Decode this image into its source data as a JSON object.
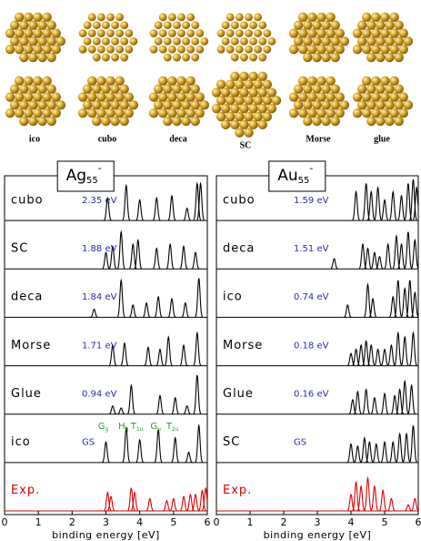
{
  "cluster_labels": [
    "ico",
    "cubo",
    "deca",
    "SC",
    "Morse",
    "glue"
  ],
  "chart_data": [
    {
      "type": "line",
      "title": {
        "base": "Ag",
        "sub": "55",
        "sup": "-"
      },
      "xlabel": "binding energy [eV]",
      "xlim": [
        0,
        6
      ],
      "xticks": [
        0,
        1,
        2,
        3,
        4,
        5,
        6
      ],
      "series": [
        {
          "name": "cubo",
          "label": "2.35 eV",
          "color": "#000000",
          "x": [
            3.05,
            3.6,
            4.0,
            4.5,
            4.95,
            5.4,
            5.7,
            5.8
          ],
          "values": [
            0.55,
            0.85,
            0.5,
            0.55,
            0.6,
            0.3,
            0.9,
            0.9
          ]
        },
        {
          "name": "SC",
          "label": "1.88 eV",
          "color": "#000000",
          "x": [
            3.0,
            3.2,
            3.45,
            3.8,
            3.95,
            4.5,
            4.9,
            5.3,
            5.65
          ],
          "values": [
            0.4,
            0.55,
            0.9,
            0.6,
            0.7,
            0.5,
            0.6,
            0.55,
            0.4
          ]
        },
        {
          "name": "deca",
          "label": "1.84 eV",
          "color": "#000000",
          "x": [
            2.65,
            3.45,
            3.8,
            4.2,
            4.55,
            4.95,
            5.35,
            5.75
          ],
          "values": [
            0.2,
            0.9,
            0.3,
            0.35,
            0.5,
            0.45,
            0.35,
            0.95
          ]
        },
        {
          "name": "Morse",
          "label": "1.71 eV",
          "color": "#000000",
          "x": [
            3.2,
            3.55,
            4.25,
            4.6,
            4.85,
            5.3,
            5.7
          ],
          "values": [
            0.5,
            0.55,
            0.45,
            0.4,
            0.7,
            0.5,
            0.8
          ]
        },
        {
          "name": "Glue",
          "label": "0.94 eV",
          "color": "#000000",
          "x": [
            3.2,
            3.45,
            3.75,
            4.6,
            5.05,
            5.4,
            5.7
          ],
          "values": [
            0.2,
            0.15,
            0.7,
            0.45,
            0.4,
            0.2,
            0.95
          ]
        },
        {
          "name": "ico",
          "label": "GS",
          "color": "#000000",
          "x": [
            3.0,
            3.6,
            4.0,
            4.55,
            5.05,
            5.45,
            5.75
          ],
          "values": [
            0.5,
            0.85,
            0.55,
            0.8,
            0.6,
            0.25,
            0.9
          ],
          "peak_labels": [
            {
              "base": "G",
              "sub": "g"
            },
            {
              "base": "H",
              "sub": "g"
            },
            {
              "base": "T",
              "sub": "1u"
            },
            {
              "base": "G",
              "sub": "u"
            },
            {
              "base": "T",
              "sub": "2u"
            }
          ]
        },
        {
          "name": "Exp.",
          "color": "#e00000",
          "x": [
            3.05,
            3.15,
            3.75,
            3.85,
            4.3,
            4.8,
            5.0,
            5.3,
            5.5,
            5.65,
            5.85,
            5.95
          ],
          "values": [
            0.45,
            0.35,
            0.55,
            0.45,
            0.3,
            0.25,
            0.3,
            0.35,
            0.4,
            0.4,
            0.5,
            0.55
          ]
        }
      ]
    },
    {
      "type": "line",
      "title": {
        "base": "Au",
        "sub": "55",
        "sup": "-"
      },
      "xlabel": "binding energy [eV]",
      "xlim": [
        0,
        6
      ],
      "xticks": [
        0,
        1,
        2,
        3,
        4,
        5,
        6
      ],
      "series": [
        {
          "name": "cubo",
          "label": "1.59 eV",
          "color": "#000000",
          "x": [
            4.15,
            4.45,
            4.6,
            4.8,
            5.0,
            5.25,
            5.5,
            5.7,
            5.85,
            5.95
          ],
          "values": [
            0.7,
            0.9,
            0.7,
            0.8,
            0.5,
            0.7,
            0.6,
            0.9,
            1.0,
            0.8
          ]
        },
        {
          "name": "deca",
          "label": "1.51 eV",
          "color": "#000000",
          "x": [
            3.5,
            4.35,
            4.5,
            4.7,
            4.85,
            5.1,
            5.35,
            5.5,
            5.7,
            5.9
          ],
          "values": [
            0.25,
            0.6,
            0.5,
            0.4,
            0.3,
            0.6,
            0.8,
            0.6,
            0.9,
            0.7
          ]
        },
        {
          "name": "ico",
          "label": "0.74 eV",
          "color": "#000000",
          "x": [
            3.9,
            4.5,
            4.65,
            5.25,
            5.4,
            5.6,
            5.75,
            5.9
          ],
          "values": [
            0.3,
            0.8,
            0.45,
            0.5,
            0.9,
            0.7,
            0.9,
            0.6
          ]
        },
        {
          "name": "Morse",
          "label": "0.18 eV",
          "color": "#000000",
          "x": [
            4.0,
            4.15,
            4.3,
            4.45,
            4.6,
            4.8,
            5.0,
            5.2,
            5.4,
            5.6,
            5.85
          ],
          "values": [
            0.3,
            0.4,
            0.5,
            0.6,
            0.5,
            0.4,
            0.4,
            0.5,
            0.8,
            0.7,
            0.8
          ]
        },
        {
          "name": "Glue",
          "label": "0.16 eV",
          "color": "#000000",
          "x": [
            4.05,
            4.2,
            4.45,
            4.7,
            5.0,
            5.3,
            5.45,
            5.6,
            5.8
          ],
          "values": [
            0.35,
            0.55,
            0.6,
            0.4,
            0.5,
            0.45,
            0.6,
            0.8,
            0.7
          ]
        },
        {
          "name": "SC",
          "label": "GS",
          "color": "#000000",
          "x": [
            4.0,
            4.2,
            4.4,
            4.55,
            4.75,
            5.0,
            5.25,
            5.45,
            5.65,
            5.85
          ],
          "values": [
            0.45,
            0.4,
            0.6,
            0.5,
            0.45,
            0.5,
            0.5,
            0.7,
            0.7,
            0.9
          ]
        },
        {
          "name": "Exp.",
          "color": "#e00000",
          "x": [
            4.0,
            4.15,
            4.3,
            4.5,
            4.7,
            4.95,
            5.2,
            5.7,
            5.9
          ],
          "values": [
            0.4,
            0.7,
            0.6,
            0.8,
            0.6,
            0.5,
            0.3,
            0.15,
            0.3
          ]
        }
      ]
    }
  ]
}
